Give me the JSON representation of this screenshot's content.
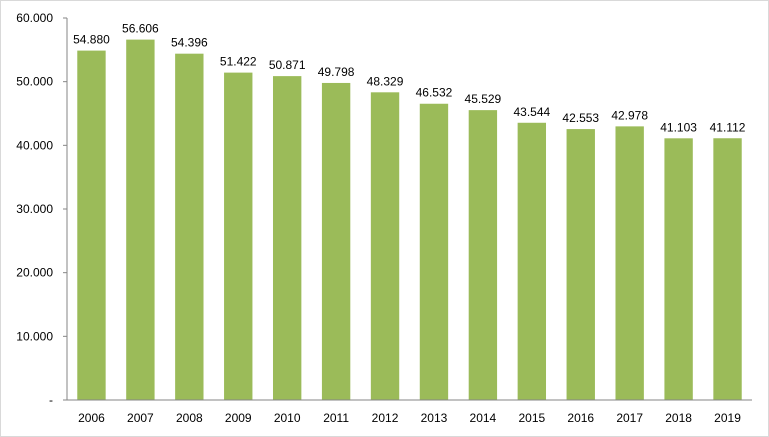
{
  "chart_data": {
    "type": "bar",
    "title": "",
    "xlabel": "",
    "ylabel": "",
    "categories": [
      "2006",
      "2007",
      "2008",
      "2009",
      "2010",
      "2011",
      "2012",
      "2013",
      "2014",
      "2015",
      "2016",
      "2017",
      "2018",
      "2019"
    ],
    "values": [
      54880,
      56606,
      54396,
      51422,
      50871,
      49798,
      48329,
      46532,
      45529,
      43544,
      42553,
      42978,
      41103,
      41112
    ],
    "data_labels": [
      "54.880",
      "56.606",
      "54.396",
      "51.422",
      "50.871",
      "49.798",
      "48.329",
      "46.532",
      "45.529",
      "43.544",
      "42.553",
      "42.978",
      "41.103",
      "41.112"
    ],
    "ylim": [
      0,
      60000
    ],
    "yticks": [
      0,
      10000,
      20000,
      30000,
      40000,
      50000,
      60000
    ],
    "ytick_labels": [
      "-",
      "10.000",
      "20.000",
      "30.000",
      "40.000",
      "50.000",
      "60.000"
    ],
    "grid": false,
    "legend": "none",
    "bar_color": "#9bbb59",
    "axis_color": "#868686"
  }
}
